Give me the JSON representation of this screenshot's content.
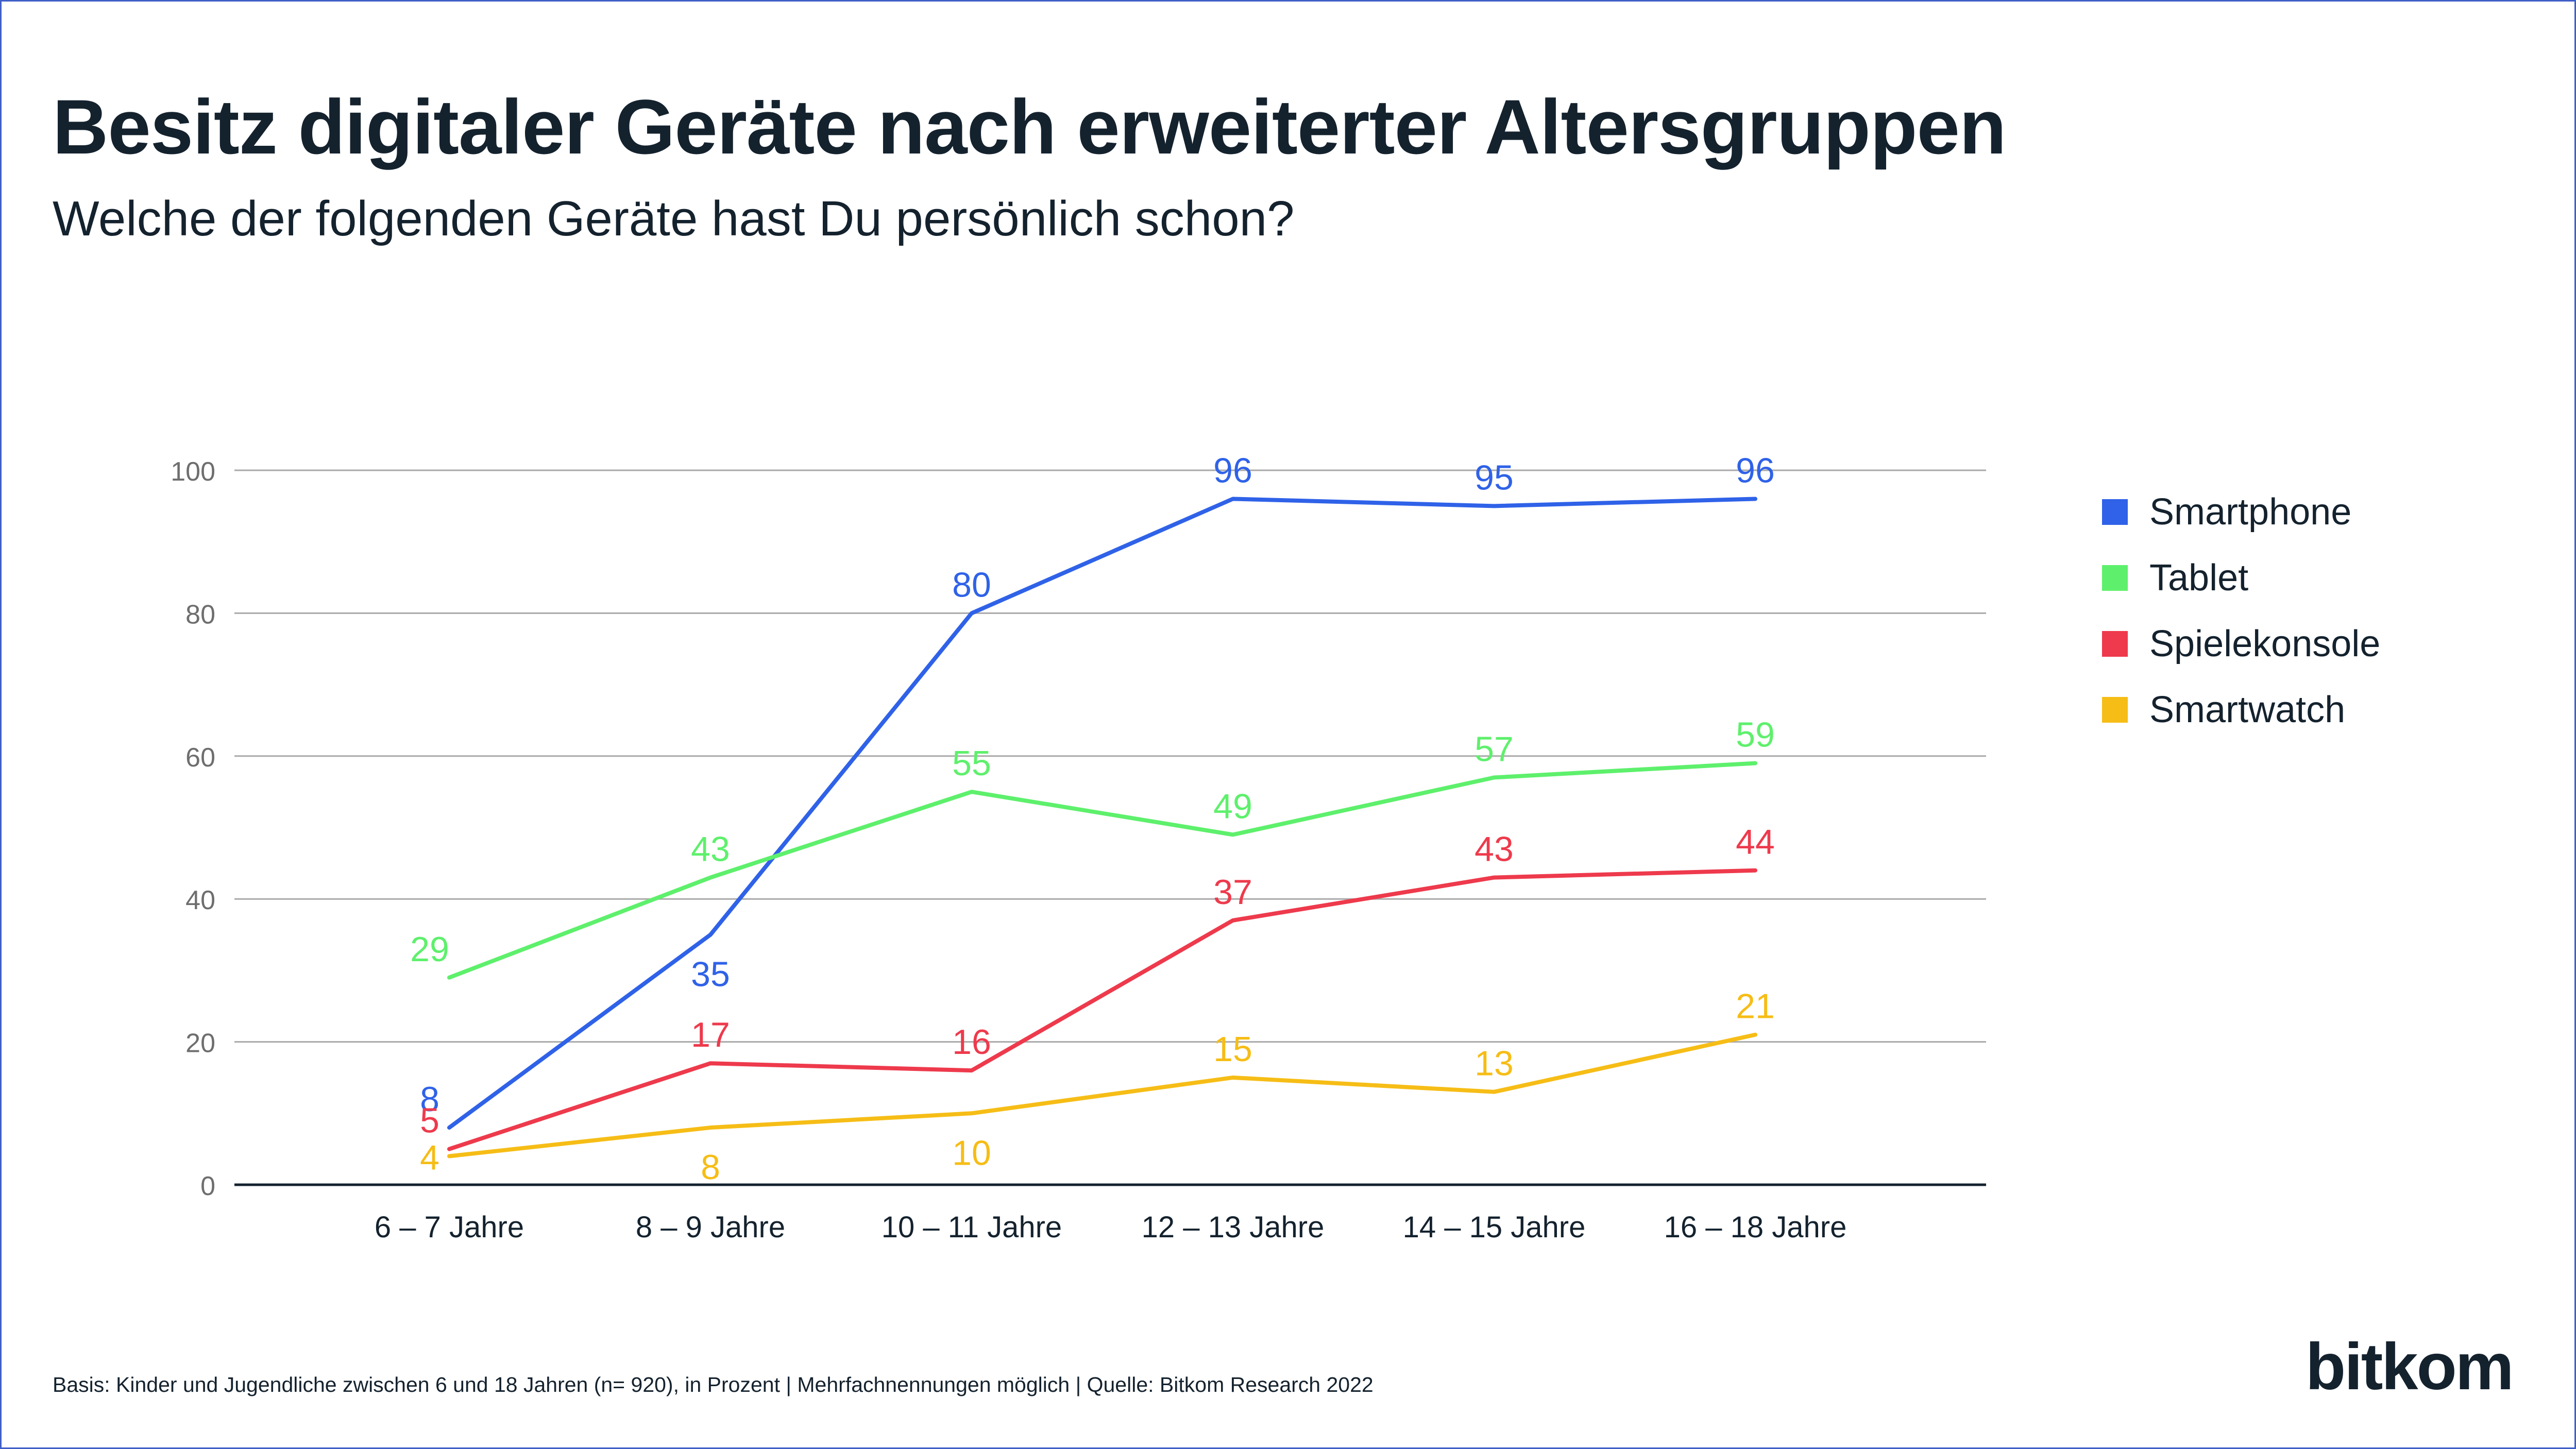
{
  "title": "Besitz digitaler Geräte nach erweiterter Altersgruppen",
  "subtitle": "Welche der folgenden Geräte hast Du persönlich schon?",
  "footnote": "Basis: Kinder und Jugendliche zwischen 6 und 18 Jahren (n= 920), in Prozent | Mehrfachnennungen möglich | Quelle: Bitkom Research 2022",
  "logo": "bitkom",
  "chart_data": {
    "type": "line",
    "title": "Besitz digitaler Geräte nach erweiterter Altersgruppen",
    "subtitle": "Welche der folgenden Geräte hast Du persönlich schon?",
    "xlabel": "",
    "ylabel": "",
    "ylim": [
      0,
      100
    ],
    "yticks": [
      0,
      20,
      40,
      60,
      80,
      100
    ],
    "grid": true,
    "legend_position": "right",
    "categories": [
      "6 – 7 Jahre",
      "8 – 9 Jahre",
      "10 – 11 Jahre",
      "12 – 13 Jahre",
      "14 – 15 Jahre",
      "16 – 18 Jahre"
    ],
    "series": [
      {
        "name": "Smartphone",
        "color": "#2f62e8",
        "values": [
          8,
          35,
          80,
          96,
          95,
          96
        ],
        "label_pos": [
          "above",
          "below",
          "above",
          "above",
          "above",
          "above"
        ]
      },
      {
        "name": "Tablet",
        "color": "#5ef06c",
        "values": [
          29,
          43,
          55,
          49,
          57,
          59
        ],
        "label_pos": [
          "above",
          "above",
          "above",
          "above",
          "above",
          "above"
        ]
      },
      {
        "name": "Spielekonsole",
        "color": "#ee3a4c",
        "values": [
          5,
          17,
          16,
          37,
          43,
          44
        ],
        "label_pos": [
          "above",
          "above",
          "above",
          "above",
          "above",
          "above"
        ]
      },
      {
        "name": "Smartwatch",
        "color": "#f6bd16",
        "values": [
          4,
          8,
          10,
          15,
          13,
          21
        ],
        "label_pos": [
          "on",
          "below",
          "below",
          "above",
          "above",
          "above"
        ]
      }
    ]
  }
}
